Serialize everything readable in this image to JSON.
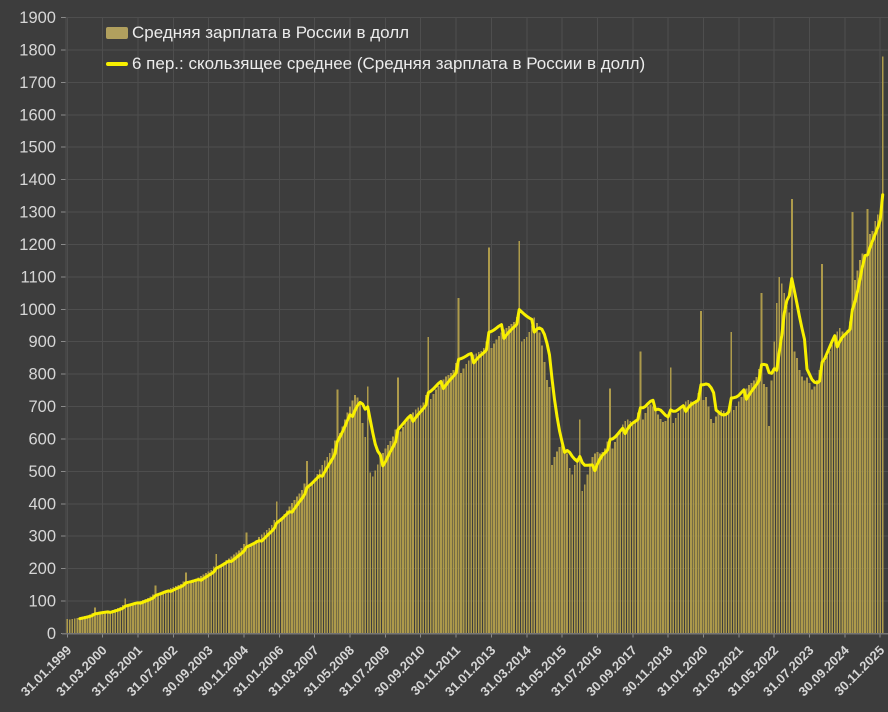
{
  "window": {
    "title": "Средняя зарплата в России в долл"
  },
  "legend": {
    "bars_label": "Средняя зарплата в России в долл",
    "ma_label": "6 пер.: скользящее среднее (Средняя зарплата в России в долл)"
  },
  "colors": {
    "background": "#3d3d3d",
    "gridline": "#4e4e4e",
    "axis_line": "#757575",
    "tick_mark": "#8a8a8a",
    "bar_fill": "#ad9a4b",
    "legend_bar_swatch": "#b1a05e",
    "ma_line": "#f8f000",
    "axis_text": "#d6d6d6",
    "legend_text": "#ececec"
  },
  "chart_data": {
    "type": "bar",
    "title": "",
    "xlabel": "",
    "ylabel": "",
    "ylim": [
      0,
      1900
    ],
    "y_tick_step": 100,
    "y_tick_labels": [
      "0",
      "100",
      "200",
      "300",
      "400",
      "500",
      "600",
      "700",
      "800",
      "900",
      "1000",
      "1100",
      "1200",
      "1300",
      "1400",
      "1500",
      "1600",
      "1700",
      "1800",
      "1900"
    ],
    "grid": true,
    "legend_position": "top-left",
    "x_is_monthly_from": "31.01.1999",
    "x_tick_every_n_months": 14,
    "x_tick_labels": [
      "31.01.1999",
      "31.03.2000",
      "31.05.2001",
      "31.07.2002",
      "30.09.2003",
      "30.11.2004",
      "31.01.2006",
      "31.03.2007",
      "31.05.2008",
      "31.07.2009",
      "30.09.2010",
      "30.11.2011",
      "31.01.2013",
      "31.03.2014",
      "31.05.2015",
      "31.07.2016",
      "30.09.2017",
      "30.11.2018",
      "31.01.2020",
      "31.03.2021",
      "31.05.2022",
      "31.07.2023",
      "30.09.2024",
      "30.11.2025"
    ],
    "series": [
      {
        "name": "Средняя зарплата в России в долл",
        "type": "bar",
        "values": [
          45,
          43,
          44,
          46,
          48,
          50,
          52,
          54,
          56,
          58,
          63,
          80,
          60,
          62,
          64,
          66,
          68,
          70,
          73,
          76,
          79,
          82,
          88,
          108,
          86,
          89,
          92,
          95,
          98,
          101,
          104,
          107,
          110,
          114,
          121,
          148,
          120,
          124,
          128,
          132,
          136,
          140,
          143,
          146,
          149,
          153,
          160,
          188,
          152,
          157,
          162,
          167,
          172,
          177,
          182,
          186,
          191,
          196,
          206,
          245,
          205,
          212,
          219,
          226,
          232,
          238,
          244,
          250,
          256,
          263,
          276,
          312,
          265,
          273,
          281,
          289,
          297,
          305,
          312,
          319,
          326,
          334,
          350,
          407,
          347,
          358,
          369,
          380,
          391,
          402,
          412,
          422,
          432,
          443,
          462,
          532,
          450,
          464,
          478,
          492,
          506,
          520,
          533,
          545,
          557,
          570,
          596,
          752,
          618,
          639,
          660,
          681,
          700,
          718,
          735,
          728,
          714,
          650,
          606,
          762,
          497,
          484,
          503,
          522,
          541,
          557,
          571,
          582,
          593,
          607,
          630,
          790,
          623,
          637,
          651,
          662,
          672,
          682,
          691,
          697,
          703,
          713,
          735,
          915,
          723,
          738,
          752,
          763,
          773,
          783,
          792,
          797,
          803,
          813,
          835,
          1035,
          804,
          818,
          831,
          842,
          852,
          860,
          864,
          868,
          872,
          880,
          900,
          1190,
          880,
          894,
          907,
          918,
          928,
          937,
          943,
          949,
          955,
          961,
          976,
          1210,
          900,
          908,
          915,
          930,
          950,
          975,
          958,
          928,
          888,
          838,
          782,
          760,
          520,
          545,
          562,
          575,
          580,
          570,
          555,
          510,
          490,
          520,
          542,
          660,
          440,
          460,
          490,
          525,
          545,
          555,
          560,
          555,
          560,
          570,
          592,
          755,
          570,
          590,
          610,
          630,
          645,
          655,
          660,
          655,
          650,
          660,
          682,
          870,
          660,
          680,
          700,
          706,
          700,
          690,
          676,
          662,
          652,
          656,
          672,
          820,
          650,
          665,
          680,
          695,
          706,
          715,
          720,
          716,
          711,
          720,
          742,
          995,
          720,
          730,
          700,
          662,
          650,
          670,
          685,
          690,
          686,
          676,
          692,
          930,
          690,
          702,
          716,
          730,
          741,
          755,
          766,
          772,
          781,
          791,
          816,
          1050,
          770,
          760,
          640,
          780,
          900,
          1020,
          1100,
          1080,
          1050,
          1010,
          990,
          1340,
          870,
          850,
          812,
          792,
          780,
          790,
          772,
          752,
          762,
          782,
          812,
          1140,
          840,
          856,
          872,
          892,
          912,
          932,
          942,
          932,
          922,
          936,
          962,
          1300,
          1090,
          1120,
          1152,
          1172,
          1162,
          1310,
          1232,
          1242,
          1272,
          1292,
          1302,
          1780
        ]
      },
      {
        "name": "6 пер.: скользящее среднее (Средняя зарплата в России в долл)",
        "type": "line",
        "derived": "trailing_moving_average_of_series_0",
        "window": 6
      }
    ]
  }
}
